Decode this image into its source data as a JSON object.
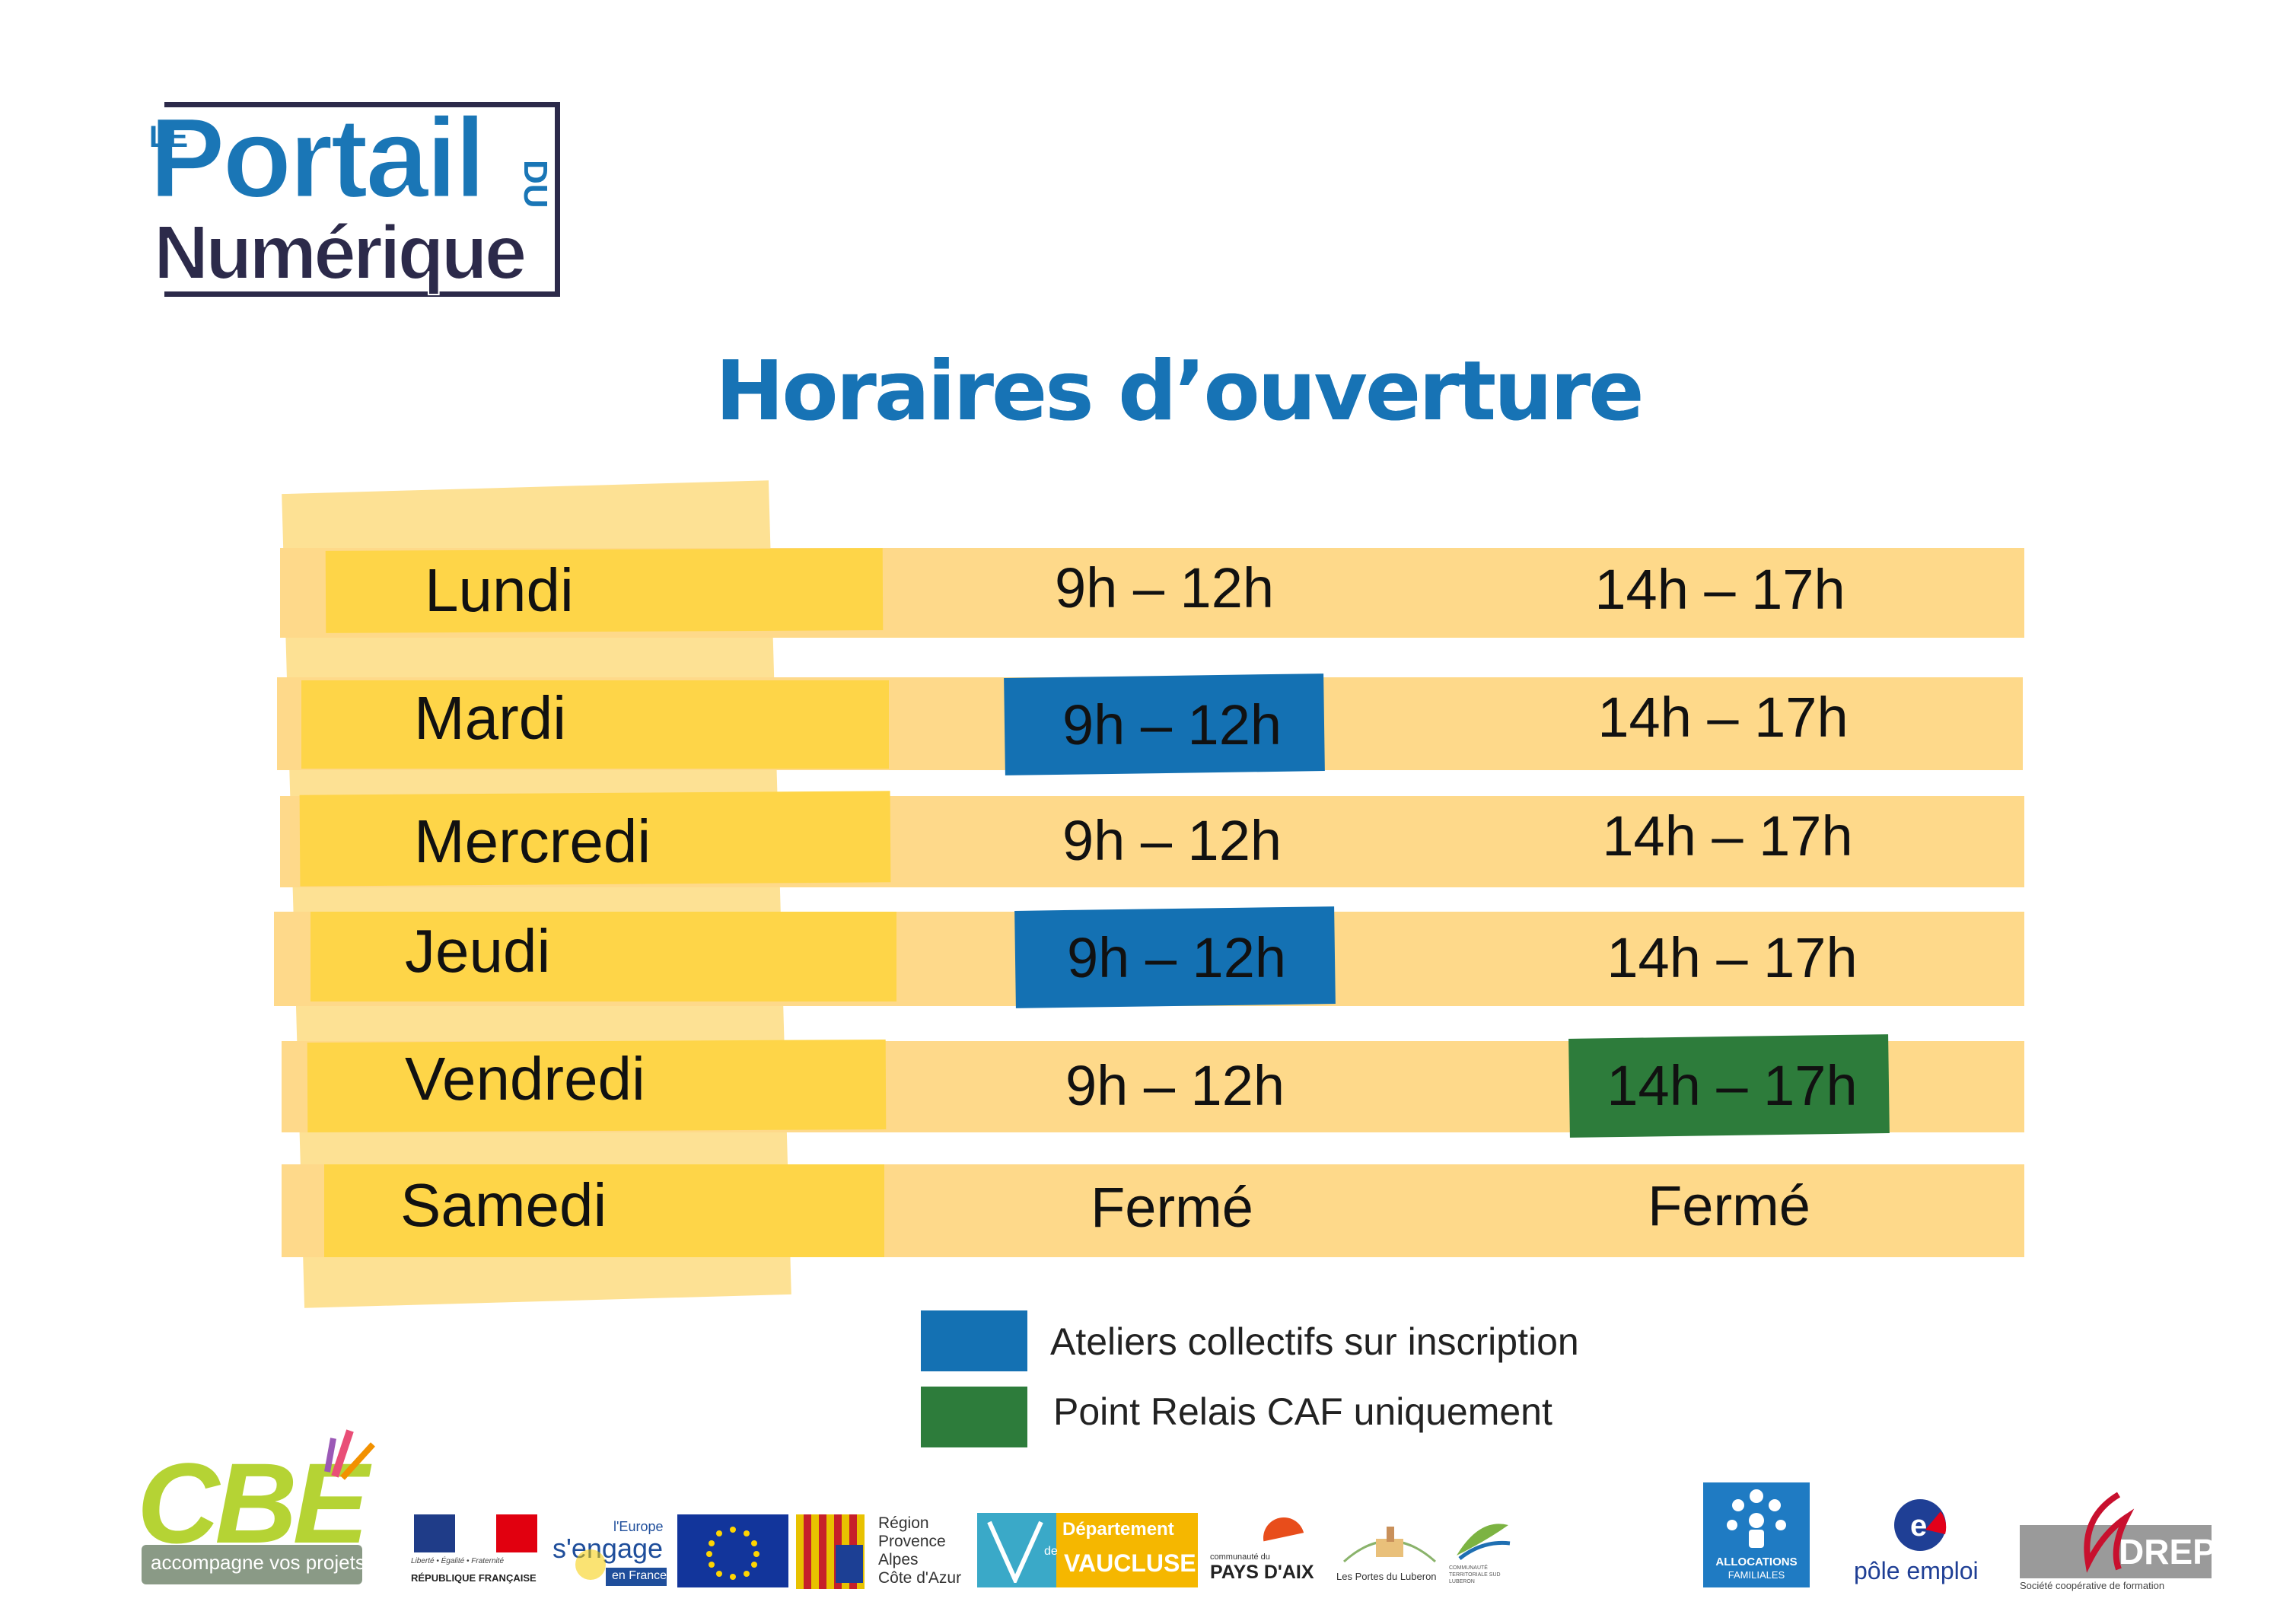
{
  "logo": {
    "le": "LE",
    "portail": "Portail",
    "du": "DU",
    "numerique": "Numérique"
  },
  "title": "Horaires d’ouverture",
  "schedule": [
    {
      "day": "Lundi",
      "morning": "9h – 12h",
      "afternoon": "14h – 17h",
      "morning_type": "normal",
      "afternoon_type": "normal"
    },
    {
      "day": "Mardi",
      "morning": "9h – 12h",
      "afternoon": "14h – 17h",
      "morning_type": "ateliers",
      "afternoon_type": "normal"
    },
    {
      "day": "Mercredi",
      "morning": "9h – 12h",
      "afternoon": "14h – 17h",
      "morning_type": "normal",
      "afternoon_type": "normal"
    },
    {
      "day": "Jeudi",
      "morning": "9h – 12h",
      "afternoon": "14h – 17h",
      "morning_type": "ateliers",
      "afternoon_type": "normal"
    },
    {
      "day": "Vendredi",
      "morning": "9h – 12h",
      "afternoon": "14h – 17h",
      "morning_type": "normal",
      "afternoon_type": "caf"
    },
    {
      "day": "Samedi",
      "morning": "Fermé",
      "afternoon": "Fermé",
      "morning_type": "normal",
      "afternoon_type": "normal"
    }
  ],
  "legend": [
    {
      "label": "Ateliers collectifs sur inscription",
      "color": "#1471b3"
    },
    {
      "label": "Point Relais CAF uniquement",
      "color": "#2d7c3b"
    }
  ],
  "footer": {
    "cbe": {
      "name": "CBE",
      "tagline": "accompagne vos projets"
    },
    "republique": {
      "motto": "Liberté • Égalité • Fraternité",
      "name": "RÉPUBLIQUE FRANÇAISE"
    },
    "europe": {
      "line1": "l'Europe",
      "line2": "s'engage",
      "line3": "en France"
    },
    "region": {
      "line1": "Région",
      "line2": "Provence",
      "line3": "Alpes",
      "line4": "Côte d'Azur"
    },
    "vaucluse": {
      "line1": "Département",
      "line2": "de",
      "line3": "VAUCLUSE"
    },
    "pays_aix": {
      "line1": "communauté du",
      "line2": "PAYS D'AIX"
    },
    "portes_luberon": {
      "name": "Les Portes du Luberon"
    },
    "communaute_luberon": {
      "name": "COMMUNAUTÉ TERRITORIALE SUD LUBERON"
    },
    "caf": {
      "line1": "ALLOCATIONS",
      "line2": "FAMILIALES"
    },
    "pole_emploi": {
      "name": "pôle emploi"
    },
    "adrep": {
      "name": "DREP",
      "tagline": "Société coopérative de formation"
    },
    "colors": {
      "blue": "#1471b3",
      "green": "#2d7c3b",
      "band": "#fed98a",
      "dayband": "#fed548",
      "title": "#1773b5"
    }
  }
}
